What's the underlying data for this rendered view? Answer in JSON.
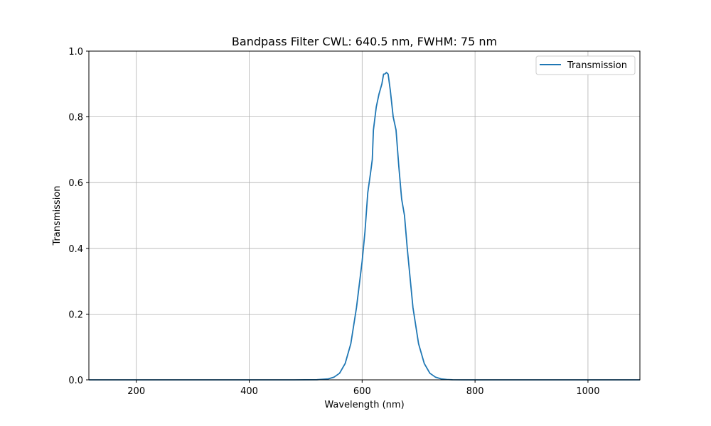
{
  "chart_data": {
    "type": "line",
    "title": "Bandpass Filter CWL: 640.5 nm, FWHM: 75 nm",
    "xlabel": "Wavelength (nm)",
    "ylabel": "Transmission",
    "xlim": [
      116,
      1092
    ],
    "ylim": [
      0.0,
      1.0
    ],
    "xticks": [
      200,
      400,
      600,
      800,
      1000
    ],
    "yticks": [
      0.0,
      0.2,
      0.4,
      0.6,
      0.8,
      1.0
    ],
    "xtick_labels": [
      "200",
      "400",
      "600",
      "800",
      "1000"
    ],
    "ytick_labels": [
      "0.0",
      "0.2",
      "0.4",
      "0.6",
      "0.8",
      "1.0"
    ],
    "grid": true,
    "legend_position": "top-right",
    "series": [
      {
        "name": "Transmission",
        "color": "#1f77b4",
        "x": [
          116,
          200,
          300,
          400,
          480,
          520,
          540,
          550,
          560,
          570,
          580,
          590,
          600,
          605,
          610,
          615,
          618,
          620,
          625,
          630,
          635,
          638,
          640,
          643,
          646,
          650,
          655,
          660,
          665,
          670,
          675,
          680,
          685,
          690,
          700,
          710,
          720,
          730,
          740,
          750,
          760,
          780,
          800,
          900,
          1000,
          1092
        ],
        "values": [
          0.0,
          0.0,
          0.0,
          0.0,
          0.0,
          0.0005,
          0.003,
          0.008,
          0.02,
          0.05,
          0.11,
          0.22,
          0.36,
          0.45,
          0.57,
          0.63,
          0.67,
          0.76,
          0.83,
          0.87,
          0.9,
          0.93,
          0.93,
          0.935,
          0.93,
          0.88,
          0.8,
          0.76,
          0.65,
          0.55,
          0.5,
          0.4,
          0.31,
          0.22,
          0.11,
          0.05,
          0.02,
          0.008,
          0.003,
          0.001,
          0.0003,
          0.0,
          0.0,
          0.0,
          0.0,
          0.0
        ]
      }
    ]
  }
}
